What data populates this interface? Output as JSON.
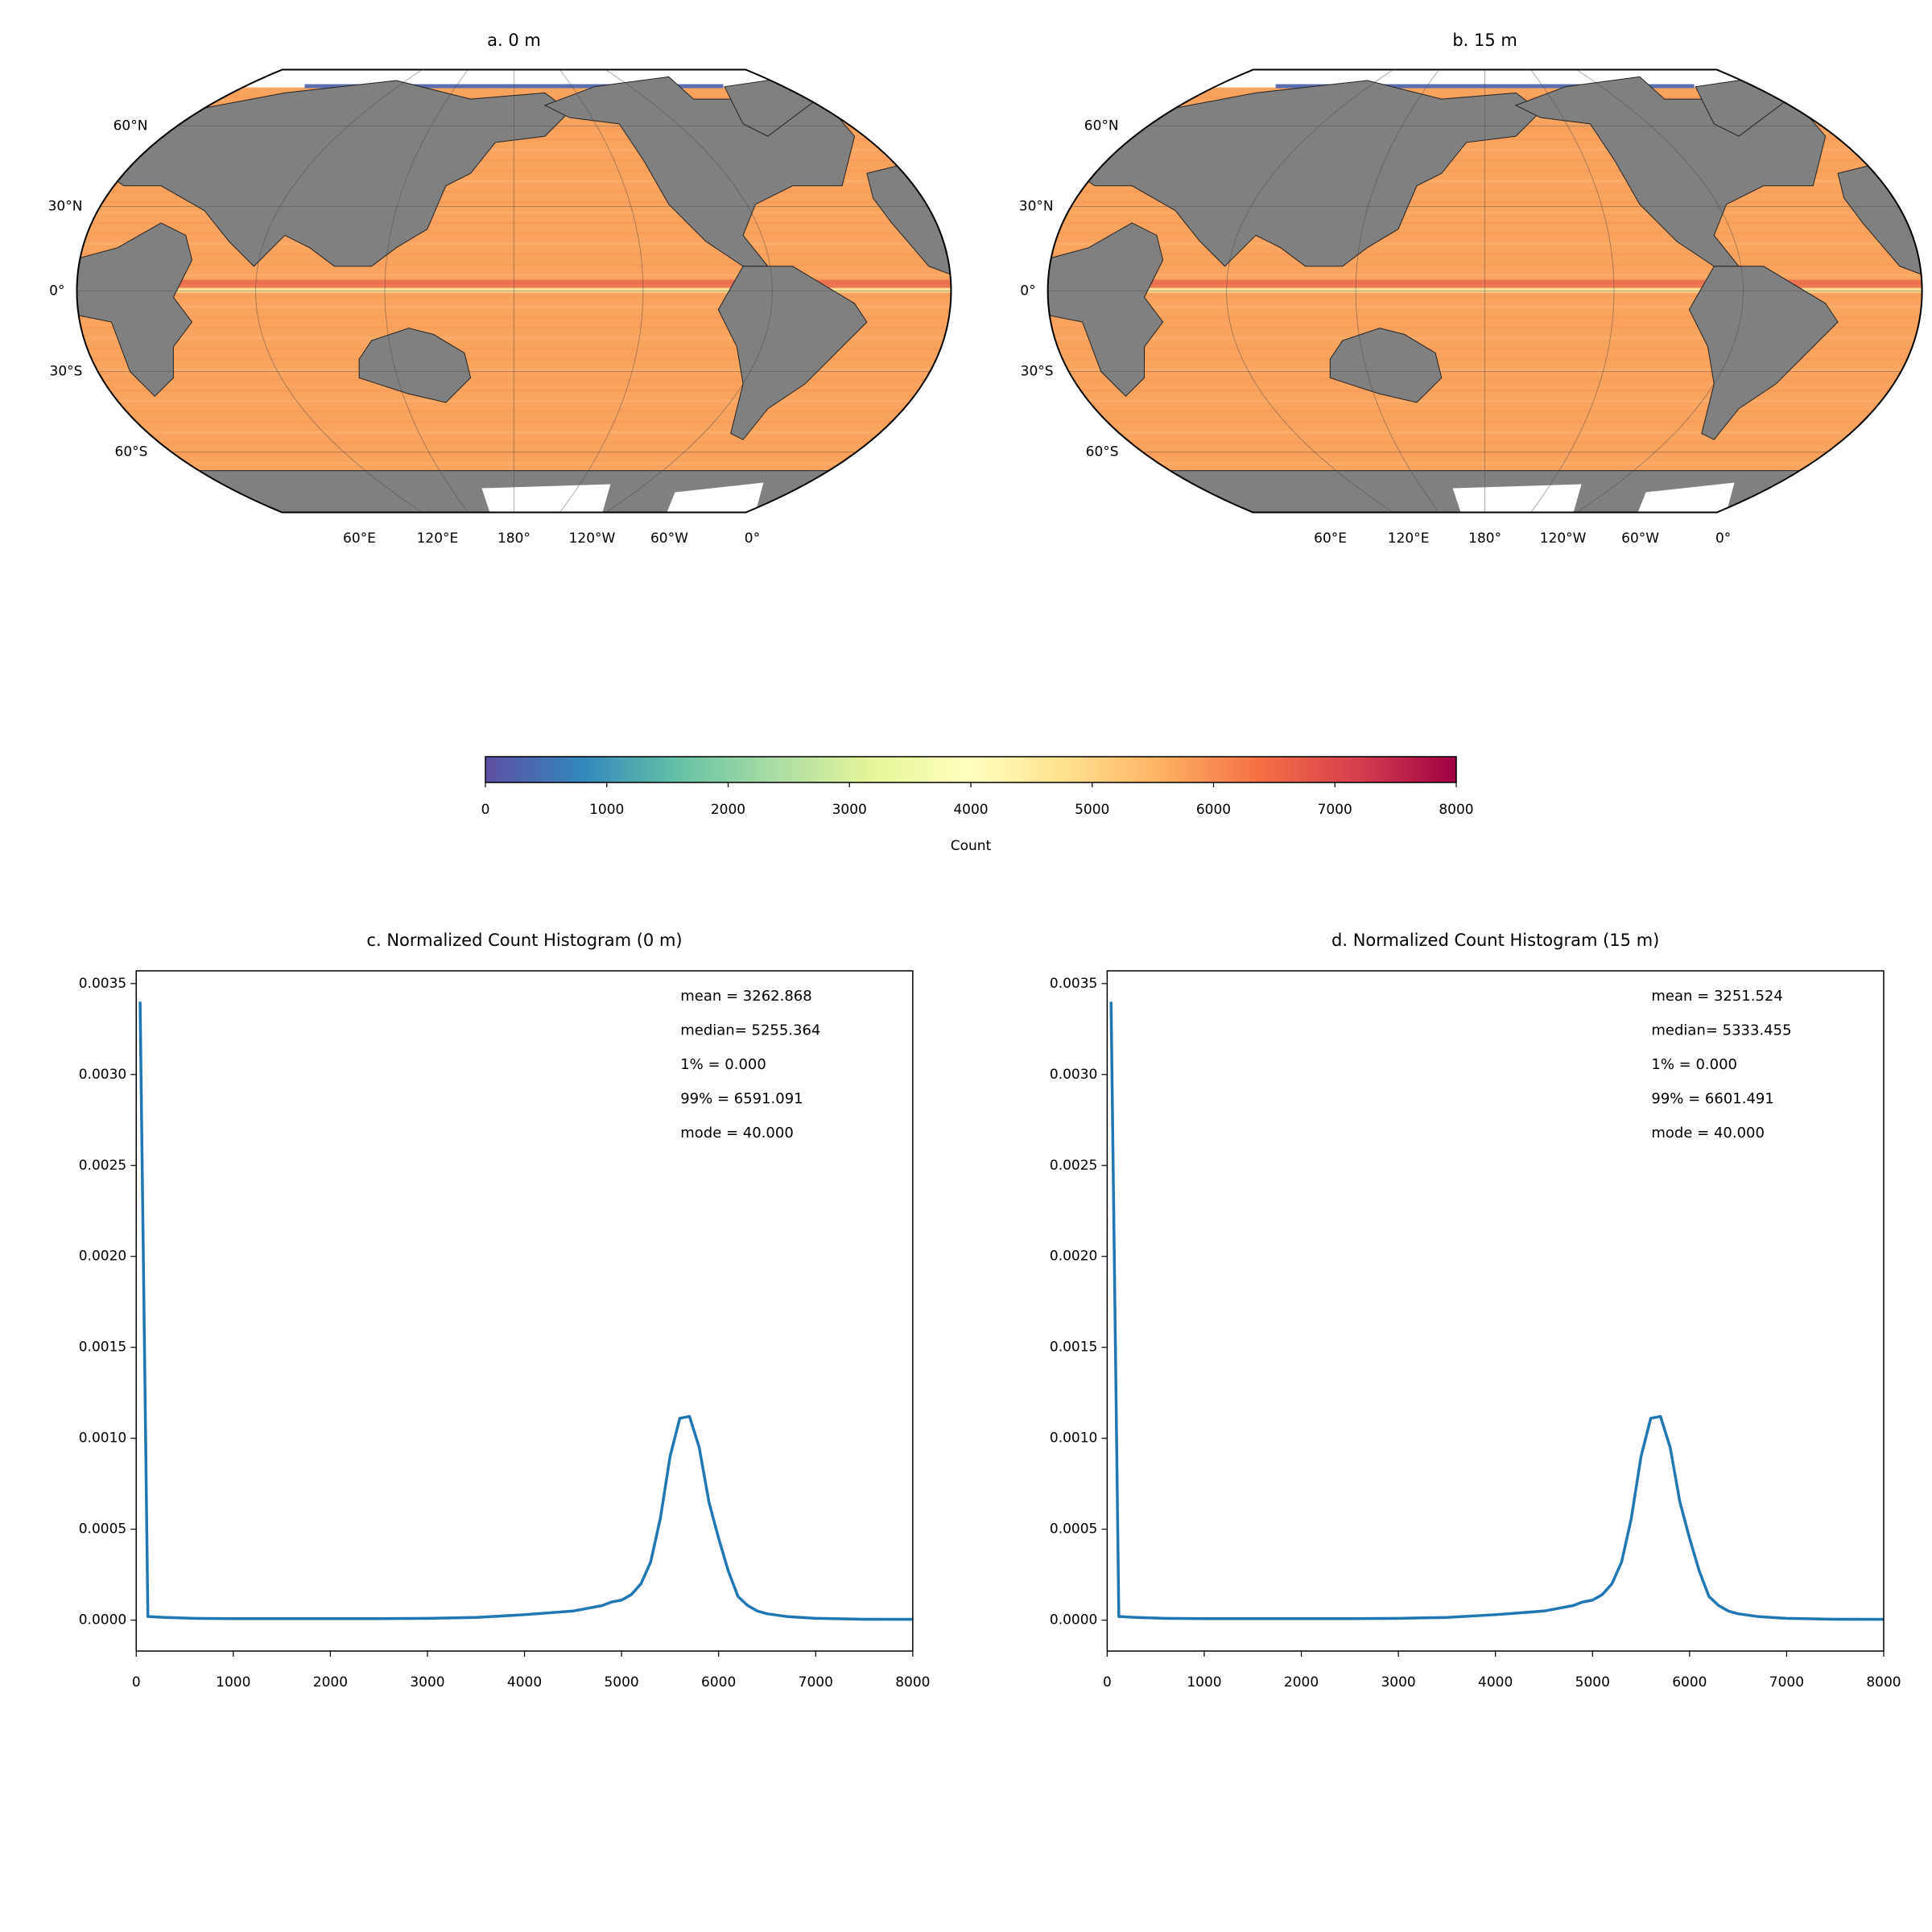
{
  "chart_data": [
    {
      "type": "map",
      "title": "a. 0 m",
      "lat_labels": [
        "60°N",
        "30°N",
        "0°",
        "30°S",
        "60°S"
      ],
      "lon_labels": [
        "60°E",
        "120°E",
        "180°",
        "120°W",
        "60°W",
        "0°"
      ]
    },
    {
      "type": "map",
      "title": "b. 15 m",
      "lat_labels": [
        "60°N",
        "30°N",
        "0°",
        "30°S",
        "60°S"
      ],
      "lon_labels": [
        "60°E",
        "120°E",
        "180°",
        "120°W",
        "60°W",
        "0°"
      ]
    },
    {
      "type": "colorbar",
      "label": "Count",
      "xlim": [
        0,
        8000
      ],
      "xticks": [
        0,
        1000,
        2000,
        3000,
        4000,
        5000,
        6000,
        7000,
        8000
      ],
      "colors": [
        "#5e4fa2",
        "#3288bd",
        "#66c2a5",
        "#abdda4",
        "#e6f598",
        "#ffffbf",
        "#fee08b",
        "#fdae61",
        "#f46d43",
        "#d53e4f",
        "#9e0142"
      ]
    },
    {
      "type": "line",
      "title": "c. Normalized Count Histogram (0 m)",
      "annotations": [
        "mean = 3262.868",
        "median= 5255.364",
        "1% = 0.000",
        "99% = 6591.091",
        "mode = 40.000"
      ],
      "color": "#1f77b4",
      "x": [
        40,
        120,
        300,
        600,
        1000,
        1500,
        2000,
        2500,
        3000,
        3500,
        4000,
        4500,
        4800,
        4900,
        5000,
        5100,
        5200,
        5300,
        5400,
        5500,
        5600,
        5700,
        5800,
        5900,
        6000,
        6100,
        6200,
        6300,
        6400,
        6500,
        6700,
        7000,
        7500,
        8000
      ],
      "values": [
        0.0034,
        2e-05,
        1.5e-05,
        1e-05,
        8e-06,
        8e-06,
        8e-06,
        8e-06,
        1e-05,
        1.5e-05,
        3e-05,
        5e-05,
        8e-05,
        0.0001,
        0.00011,
        0.00014,
        0.0002,
        0.00032,
        0.00056,
        0.0009,
        0.00111,
        0.00112,
        0.00095,
        0.00065,
        0.00045,
        0.00027,
        0.00013,
        8e-05,
        5e-05,
        3.5e-05,
        2e-05,
        1e-05,
        5e-06,
        4e-06
      ],
      "xlim": [
        0,
        8000
      ],
      "ylim": [
        -0.00017,
        0.00357
      ],
      "xticks": [
        0,
        1000,
        2000,
        3000,
        4000,
        5000,
        6000,
        7000,
        8000
      ],
      "yticks": [
        {
          "value": 0,
          "label": "0.0000"
        },
        {
          "value": 0.0005,
          "label": "0.0005"
        },
        {
          "value": 0.001,
          "label": "0.0010"
        },
        {
          "value": 0.0015,
          "label": "0.0015"
        },
        {
          "value": 0.002,
          "label": "0.0020"
        },
        {
          "value": 0.0025,
          "label": "0.0025"
        },
        {
          "value": 0.003,
          "label": "0.0030"
        },
        {
          "value": 0.0035,
          "label": "0.0035"
        }
      ]
    },
    {
      "type": "line",
      "title": "d. Normalized Count Histogram (15 m)",
      "annotations": [
        "mean = 3251.524",
        "median= 5333.455",
        "1% = 0.000",
        "99% = 6601.491",
        "mode = 40.000"
      ],
      "color": "#1f77b4",
      "x": [
        40,
        120,
        300,
        600,
        1000,
        1500,
        2000,
        2500,
        3000,
        3500,
        4000,
        4500,
        4800,
        4900,
        5000,
        5100,
        5200,
        5300,
        5400,
        5500,
        5600,
        5700,
        5800,
        5900,
        6000,
        6100,
        6200,
        6300,
        6400,
        6500,
        6700,
        7000,
        7500,
        8000
      ],
      "values": [
        0.0034,
        2e-05,
        1.5e-05,
        1e-05,
        8e-06,
        8e-06,
        8e-06,
        8e-06,
        1e-05,
        1.5e-05,
        3e-05,
        5e-05,
        8e-05,
        0.0001,
        0.00011,
        0.00014,
        0.0002,
        0.00032,
        0.00056,
        0.0009,
        0.00111,
        0.00112,
        0.00095,
        0.00065,
        0.00045,
        0.00027,
        0.00013,
        8e-05,
        5e-05,
        3.5e-05,
        2e-05,
        1e-05,
        5e-06,
        4e-06
      ],
      "xlim": [
        0,
        8000
      ],
      "ylim": [
        -0.00017,
        0.00357
      ],
      "xticks": [
        0,
        1000,
        2000,
        3000,
        4000,
        5000,
        6000,
        7000,
        8000
      ],
      "yticks": [
        {
          "value": 0,
          "label": "0.0000"
        },
        {
          "value": 0.0005,
          "label": "0.0005"
        },
        {
          "value": 0.001,
          "label": "0.0010"
        },
        {
          "value": 0.0015,
          "label": "0.0015"
        },
        {
          "value": 0.002,
          "label": "0.0020"
        },
        {
          "value": 0.0025,
          "label": "0.0025"
        },
        {
          "value": 0.003,
          "label": "0.0030"
        },
        {
          "value": 0.0035,
          "label": "0.0035"
        }
      ]
    }
  ]
}
